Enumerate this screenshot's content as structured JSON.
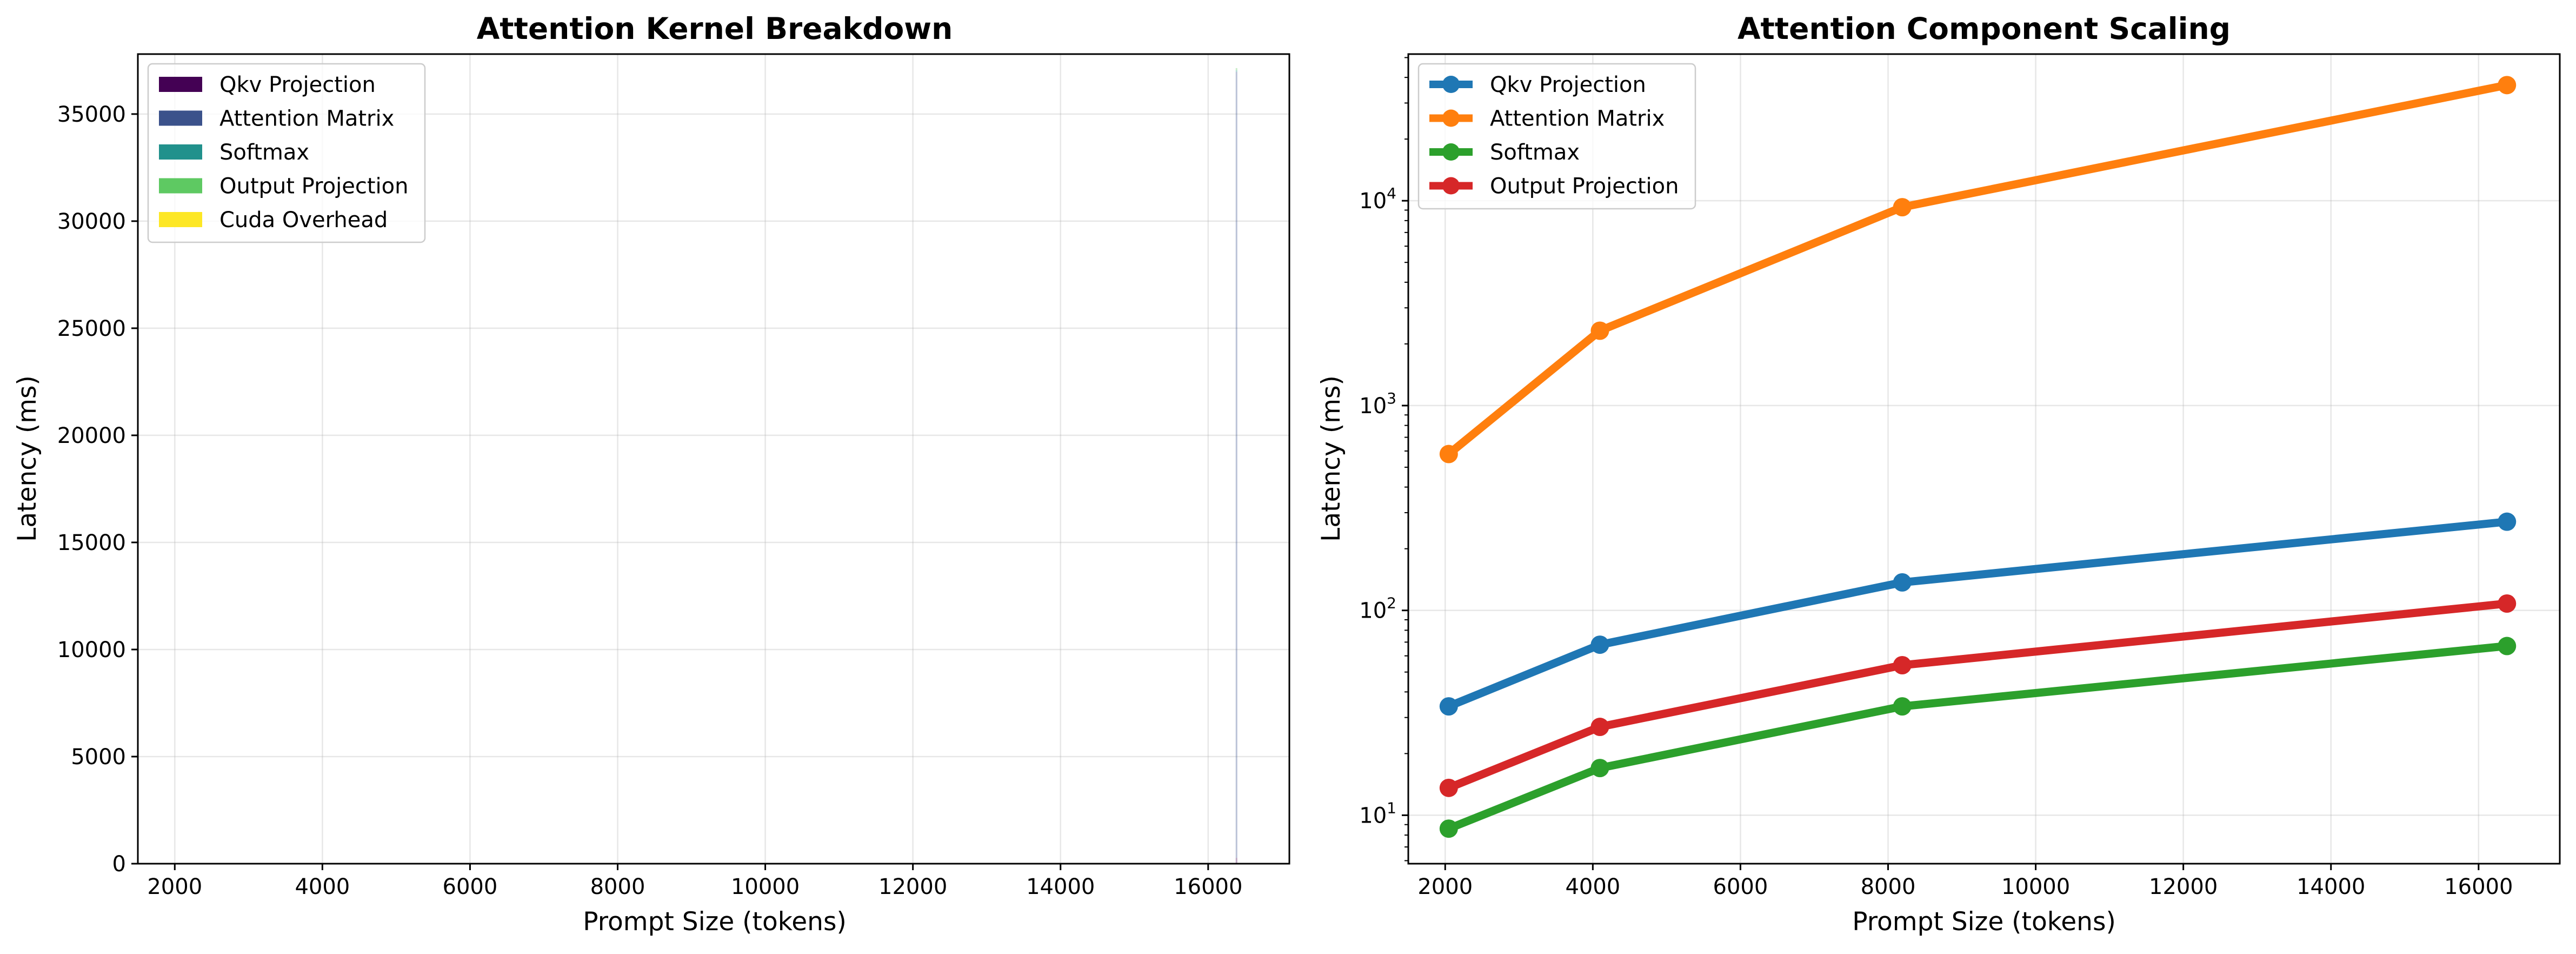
{
  "chart_data": [
    {
      "type": "area",
      "title": "Attention Kernel Breakdown",
      "xlabel": "Prompt Size (tokens)",
      "ylabel": "Latency (ms)",
      "xlim": [
        1500,
        17100
      ],
      "ylim": [
        0,
        37800
      ],
      "xticks": [
        2000,
        4000,
        6000,
        8000,
        10000,
        12000,
        14000,
        16000
      ],
      "yticks": [
        0,
        5000,
        10000,
        15000,
        20000,
        25000,
        30000,
        35000
      ],
      "grid": true,
      "legend_position": "top-left",
      "x": [
        16384
      ],
      "series": [
        {
          "name": "Qkv Projection",
          "color": "#440154",
          "values": [
            271
          ]
        },
        {
          "name": "Attention Matrix",
          "color": "#3b528b",
          "values": [
            36700
          ]
        },
        {
          "name": "Softmax",
          "color": "#21918c",
          "values": [
            67
          ]
        },
        {
          "name": "Output Projection",
          "color": "#5ec962",
          "values": [
            108
          ]
        },
        {
          "name": "Cuda Overhead",
          "color": "#fde725",
          "values": [
            0
          ]
        }
      ]
    },
    {
      "type": "line",
      "title": "Attention Component Scaling",
      "xlabel": "Prompt Size (tokens)",
      "ylabel": "Latency (ms)",
      "yscale": "log",
      "xlim": [
        1500,
        17100
      ],
      "ylim": [
        5.8,
        52000
      ],
      "xticks": [
        2000,
        4000,
        6000,
        8000,
        10000,
        12000,
        14000,
        16000
      ],
      "yticks": [
        10,
        100,
        1000,
        10000
      ],
      "yticklabels_base": "10",
      "yticklabels_exp": [
        "1",
        "2",
        "3",
        "4"
      ],
      "grid": true,
      "legend_position": "top-left",
      "x": [
        2048,
        4096,
        8192,
        16384
      ],
      "series": [
        {
          "name": "Qkv Projection",
          "color": "#1f77b4",
          "values": [
            34,
            68,
            137,
            271
          ]
        },
        {
          "name": "Attention Matrix",
          "color": "#ff7f0e",
          "values": [
            580,
            2320,
            9300,
            36700
          ]
        },
        {
          "name": "Softmax",
          "color": "#2ca02c",
          "values": [
            8.6,
            17,
            34,
            67
          ]
        },
        {
          "name": "Output Projection",
          "color": "#d62728",
          "values": [
            13.6,
            27,
            54,
            108
          ]
        }
      ]
    }
  ]
}
